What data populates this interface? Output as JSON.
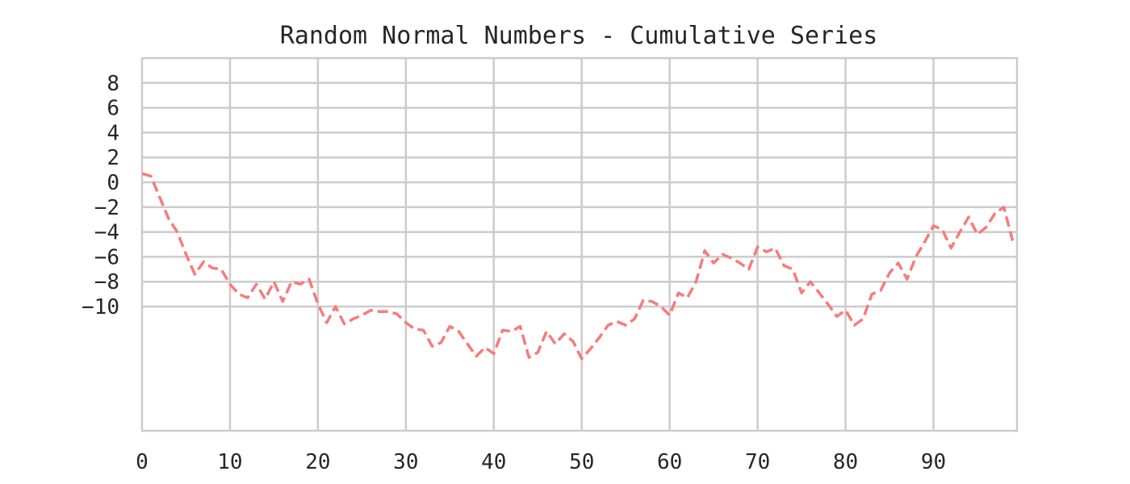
{
  "chart_data": {
    "type": "line",
    "title": "Random Normal Numbers - Cumulative Series",
    "xlabel": "",
    "ylabel": "",
    "xlim": [
      0,
      99.5
    ],
    "ylim": [
      -20,
      10
    ],
    "x_ticks": [
      0,
      10,
      20,
      30,
      40,
      50,
      60,
      70,
      80,
      90
    ],
    "y_ticks": [
      8,
      6,
      4,
      2,
      0,
      -2,
      -4,
      -6,
      -8,
      -10
    ],
    "grid": true,
    "legend": "none",
    "series": [
      {
        "color": "#f77b7b",
        "line_style": "dashed",
        "x": [
          0,
          1,
          2,
          3,
          4,
          5,
          6,
          7,
          8,
          9,
          10,
          11,
          12,
          13,
          14,
          15,
          16,
          17,
          18,
          19,
          20,
          21,
          22,
          23,
          24,
          25,
          26,
          27,
          28,
          29,
          30,
          31,
          32,
          33,
          34,
          35,
          36,
          37,
          38,
          39,
          40,
          41,
          42,
          43,
          44,
          45,
          46,
          47,
          48,
          49,
          50,
          51,
          52,
          53,
          54,
          55,
          56,
          57,
          58,
          59,
          60,
          61,
          62,
          63,
          64,
          65,
          66,
          67,
          68,
          69,
          70,
          71,
          72,
          73,
          74,
          75,
          76,
          77,
          78,
          79,
          80,
          81,
          82,
          83,
          84,
          85,
          86,
          87,
          88,
          89,
          90,
          91,
          92,
          93,
          94,
          95,
          96,
          97,
          98,
          99
        ],
        "values": [
          0.7,
          0.5,
          -1.2,
          -2.9,
          -4.0,
          -5.8,
          -7.4,
          -6.4,
          -6.9,
          -7.0,
          -8.2,
          -9.0,
          -9.3,
          -8.2,
          -9.4,
          -8.0,
          -9.6,
          -8.0,
          -8.2,
          -7.8,
          -9.8,
          -11.3,
          -10.0,
          -11.4,
          -11.0,
          -10.7,
          -10.3,
          -10.4,
          -10.4,
          -10.6,
          -11.3,
          -11.8,
          -11.9,
          -13.2,
          -12.9,
          -11.6,
          -12.0,
          -13.0,
          -14.0,
          -13.3,
          -13.8,
          -11.9,
          -12.0,
          -11.6,
          -14.1,
          -13.7,
          -12.0,
          -13.0,
          -12.2,
          -12.8,
          -14.2,
          -13.4,
          -12.5,
          -11.5,
          -11.2,
          -11.5,
          -11.0,
          -9.5,
          -9.6,
          -10.0,
          -10.7,
          -8.9,
          -9.3,
          -8.0,
          -5.5,
          -6.5,
          -5.8,
          -6.1,
          -6.5,
          -7.0,
          -5.2,
          -5.6,
          -5.3,
          -6.7,
          -7.0,
          -8.9,
          -8.0,
          -8.9,
          -9.8,
          -10.8,
          -10.3,
          -11.5,
          -11.0,
          -9.0,
          -8.7,
          -7.3,
          -6.5,
          -7.8,
          -6.0,
          -4.8,
          -3.5,
          -3.8,
          -5.3,
          -4.0,
          -2.8,
          -4.2,
          -3.6,
          -2.5,
          -2.0,
          -4.7
        ]
      }
    ]
  }
}
